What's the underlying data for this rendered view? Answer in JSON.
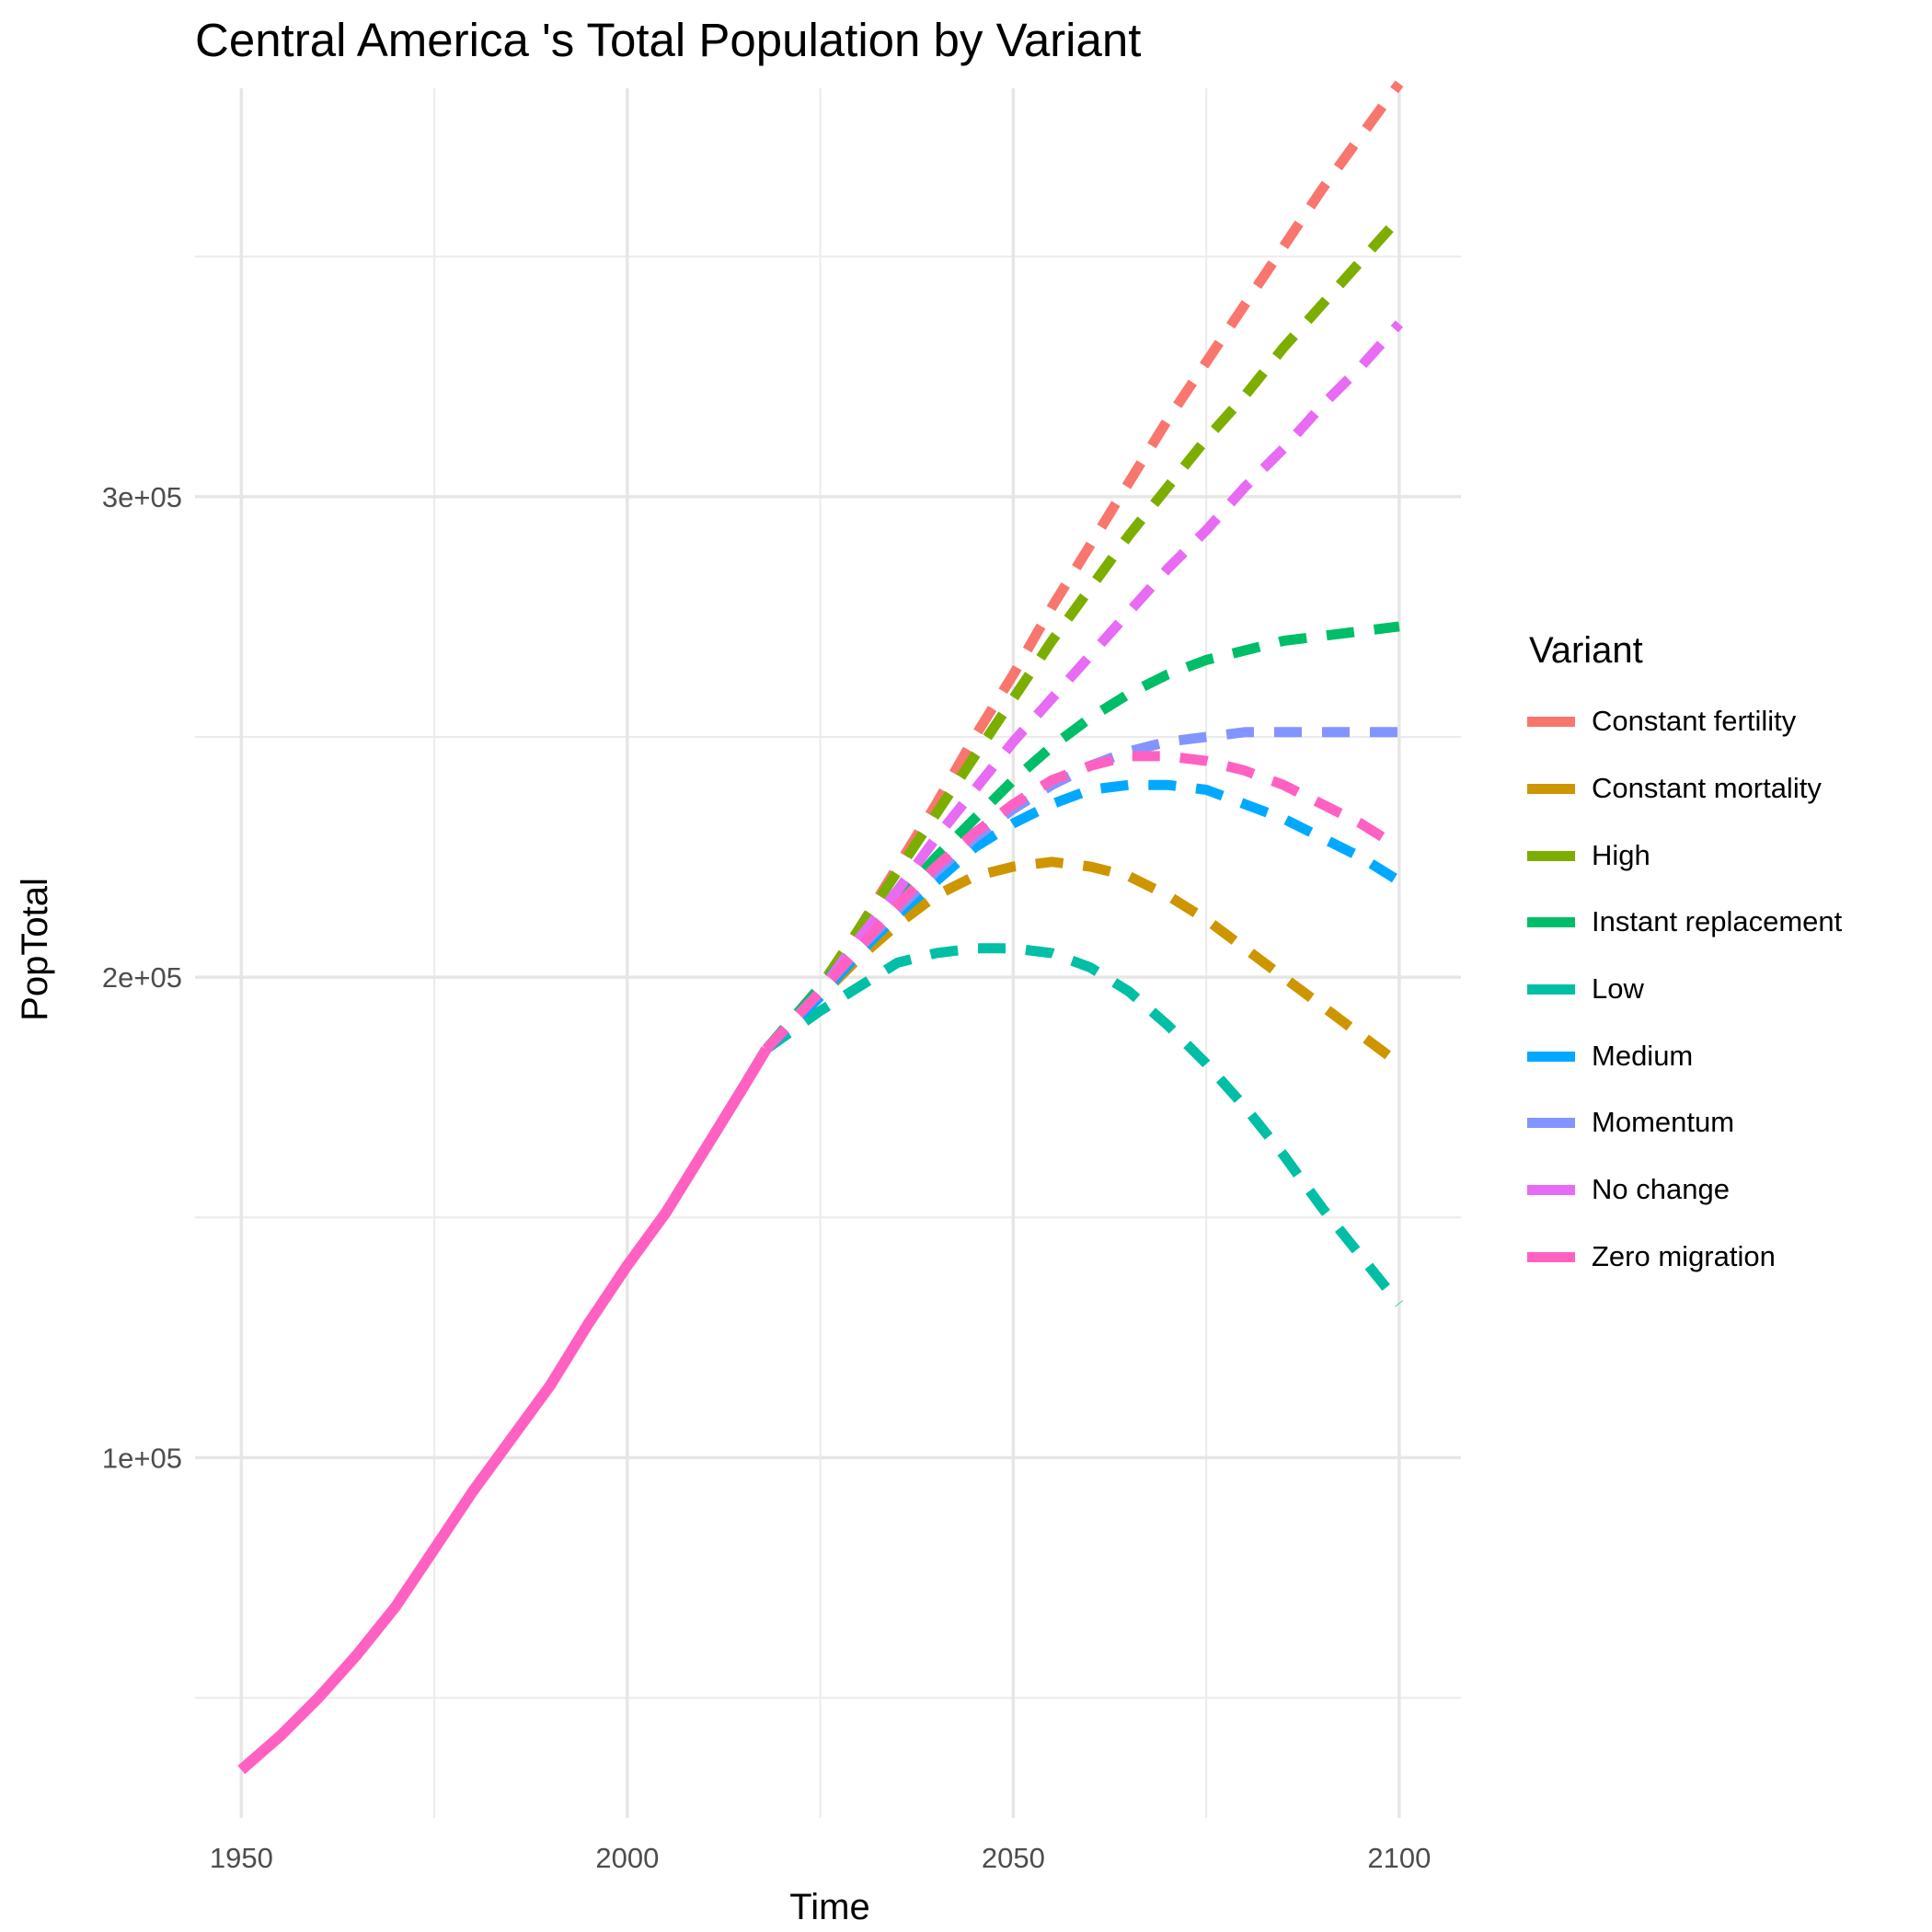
{
  "chart_data": {
    "type": "line",
    "title": "Central America 's Total Population by Variant",
    "xlabel": "Time",
    "ylabel": "PopTotal",
    "xlim": [
      1944,
      2108
    ],
    "ylim": [
      25000,
      385000
    ],
    "x_ticks": [
      1950,
      2000,
      2050,
      2100
    ],
    "x_tick_labels": [
      "1950",
      "2000",
      "2050",
      "2100"
    ],
    "x_minor_ticks": [
      1975,
      2025,
      2075
    ],
    "y_ticks": [
      100000,
      200000,
      300000
    ],
    "y_tick_labels": [
      "1e+05",
      "2e+05",
      "3e+05"
    ],
    "y_minor_ticks": [
      50000,
      150000,
      250000,
      350000
    ],
    "grid": true,
    "legend": {
      "title": "Variant",
      "position": "right"
    },
    "history": {
      "name": "Zero migration",
      "color": "#FF61C3",
      "x": [
        1950,
        1955,
        1960,
        1965,
        1970,
        1975,
        1980,
        1985,
        1990,
        1995,
        2000,
        2005,
        2010,
        2015,
        2018
      ],
      "values": [
        35000,
        42000,
        50000,
        59000,
        69000,
        81000,
        93000,
        104000,
        115000,
        128000,
        140000,
        151000,
        164000,
        177000,
        185000
      ]
    },
    "series": [
      {
        "name": "Constant fertility",
        "color": "#F8766D",
        "x": [
          2018,
          2025,
          2030,
          2035,
          2040,
          2045,
          2050,
          2055,
          2060,
          2065,
          2070,
          2075,
          2080,
          2085,
          2090,
          2095,
          2100
        ],
        "values": [
          185000,
          197000,
          210000,
          223000,
          236000,
          250000,
          263000,
          277000,
          290000,
          303000,
          316000,
          328000,
          340000,
          352000,
          364000,
          375000,
          386000
        ]
      },
      {
        "name": "Constant mortality",
        "color": "#CD9600",
        "x": [
          2018,
          2025,
          2030,
          2035,
          2040,
          2045,
          2050,
          2055,
          2060,
          2065,
          2070,
          2075,
          2080,
          2085,
          2090,
          2095,
          2100
        ],
        "values": [
          185000,
          196000,
          204000,
          211000,
          217000,
          221000,
          223000,
          224000,
          223000,
          221000,
          217000,
          212000,
          206000,
          200000,
          194000,
          188000,
          182000
        ]
      },
      {
        "name": "High",
        "color": "#7CAE00",
        "x": [
          2018,
          2025,
          2030,
          2035,
          2040,
          2045,
          2050,
          2055,
          2060,
          2065,
          2070,
          2075,
          2080,
          2085,
          2090,
          2095,
          2100
        ],
        "values": [
          185000,
          198000,
          210000,
          222000,
          234000,
          246000,
          258000,
          270000,
          281000,
          292000,
          302000,
          312000,
          321000,
          331000,
          340000,
          349000,
          358000
        ]
      },
      {
        "name": "Instant replacement",
        "color": "#00BE67",
        "x": [
          2018,
          2025,
          2030,
          2035,
          2040,
          2045,
          2050,
          2055,
          2060,
          2065,
          2070,
          2075,
          2080,
          2085,
          2090,
          2095,
          2100
        ],
        "values": [
          185000,
          198000,
          207000,
          216000,
          225000,
          233000,
          241000,
          248000,
          254000,
          259000,
          263000,
          266000,
          268000,
          270000,
          271000,
          272000,
          273000
        ]
      },
      {
        "name": "Low",
        "color": "#00BFA5",
        "x": [
          2018,
          2025,
          2030,
          2035,
          2040,
          2045,
          2050,
          2055,
          2060,
          2065,
          2070,
          2075,
          2080,
          2085,
          2090,
          2095,
          2100
        ],
        "values": [
          185000,
          193000,
          198000,
          203000,
          205000,
          206000,
          206000,
          205000,
          202000,
          197000,
          190000,
          182000,
          173000,
          163000,
          152000,
          142000,
          132000
        ]
      },
      {
        "name": "Medium",
        "color": "#00A9FF",
        "x": [
          2018,
          2025,
          2030,
          2035,
          2040,
          2045,
          2050,
          2055,
          2060,
          2065,
          2070,
          2075,
          2080,
          2085,
          2090,
          2095,
          2100
        ],
        "values": [
          185000,
          196000,
          205000,
          213000,
          220000,
          227000,
          232000,
          236000,
          239000,
          240000,
          240000,
          239000,
          236000,
          233000,
          229000,
          225000,
          220000
        ]
      },
      {
        "name": "Momentum",
        "color": "#8494FF",
        "x": [
          2018,
          2025,
          2030,
          2035,
          2040,
          2045,
          2050,
          2055,
          2060,
          2065,
          2070,
          2075,
          2080,
          2085,
          2090,
          2095,
          2100
        ],
        "values": [
          185000,
          197000,
          206000,
          214000,
          222000,
          229000,
          235000,
          240000,
          244000,
          247000,
          249000,
          250000,
          251000,
          251000,
          251000,
          251000,
          251000
        ]
      },
      {
        "name": "No change",
        "color": "#E76BF3",
        "x": [
          2018,
          2025,
          2030,
          2035,
          2040,
          2045,
          2050,
          2055,
          2060,
          2065,
          2070,
          2075,
          2080,
          2085,
          2090,
          2095,
          2100
        ],
        "values": [
          185000,
          197000,
          208000,
          218000,
          229000,
          239000,
          249000,
          258000,
          267000,
          276000,
          285000,
          293000,
          302000,
          310000,
          319000,
          327000,
          336000
        ]
      },
      {
        "name": "Zero migration",
        "color": "#FF61C3",
        "x": [
          2018,
          2025,
          2030,
          2035,
          2040,
          2045,
          2050,
          2055,
          2060,
          2065,
          2070,
          2075,
          2080,
          2085,
          2090,
          2095,
          2100
        ],
        "values": [
          185000,
          197000,
          206000,
          215000,
          223000,
          230000,
          236000,
          241000,
          244000,
          246000,
          246000,
          245000,
          243000,
          240000,
          236000,
          232000,
          227000
        ]
      }
    ]
  }
}
